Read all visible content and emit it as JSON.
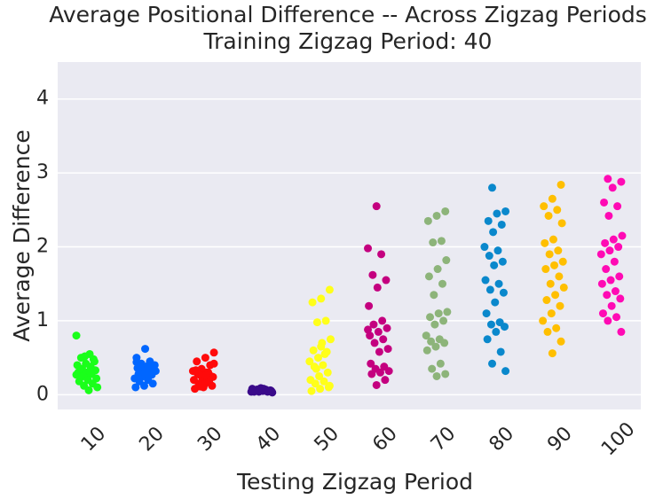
{
  "chart_data": {
    "type": "strip",
    "title": "Average Positional Difference -- Across Zigzag Periods",
    "subtitle": "Training Zigzag Period: 40",
    "xlabel": "Testing Zigzag Period",
    "ylabel": "Average Difference",
    "categories": [
      "10",
      "20",
      "30",
      "40",
      "50",
      "60",
      "70",
      "80",
      "90",
      "100"
    ],
    "colors": [
      "#1aff1a",
      "#0066ff",
      "#ff0a0a",
      "#3a0a8a",
      "#ffff1a",
      "#c4007f",
      "#8db47a",
      "#0a88cc",
      "#ffbf00",
      "#ff0ab4"
    ],
    "values": [
      [
        0.8,
        0.55,
        0.5,
        0.45,
        0.42,
        0.4,
        0.38,
        0.35,
        0.33,
        0.3,
        0.3,
        0.28,
        0.25,
        0.22,
        0.2,
        0.18,
        0.15,
        0.12,
        0.1,
        0.06,
        0.35,
        0.48,
        0.52,
        0.27,
        0.32
      ],
      [
        0.62,
        0.5,
        0.45,
        0.42,
        0.4,
        0.38,
        0.36,
        0.35,
        0.33,
        0.32,
        0.3,
        0.28,
        0.27,
        0.25,
        0.22,
        0.2,
        0.18,
        0.15,
        0.12,
        0.1,
        0.4,
        0.37,
        0.34,
        0.29,
        0.44
      ],
      [
        0.57,
        0.5,
        0.45,
        0.4,
        0.35,
        0.32,
        0.3,
        0.28,
        0.25,
        0.22,
        0.2,
        0.18,
        0.15,
        0.12,
        0.1,
        0.08,
        0.3,
        0.27,
        0.24,
        0.14,
        0.33,
        0.19,
        0.11,
        0.42,
        0.26
      ],
      [
        0.09,
        0.08,
        0.07,
        0.07,
        0.06,
        0.06,
        0.06,
        0.05,
        0.05,
        0.05,
        0.05,
        0.04,
        0.04,
        0.04,
        0.03,
        0.08,
        0.06,
        0.05,
        0.07,
        0.04
      ],
      [
        1.42,
        1.3,
        1.25,
        1.0,
        0.98,
        0.75,
        0.7,
        0.6,
        0.58,
        0.5,
        0.45,
        0.4,
        0.38,
        0.3,
        0.25,
        0.2,
        0.18,
        0.15,
        0.1,
        0.08,
        0.05,
        0.55,
        0.35,
        0.12,
        0.65
      ],
      [
        2.55,
        1.98,
        1.9,
        1.62,
        1.55,
        1.45,
        1.2,
        1.0,
        0.95,
        0.9,
        0.85,
        0.8,
        0.75,
        0.7,
        0.62,
        0.58,
        0.42,
        0.38,
        0.35,
        0.32,
        0.3,
        0.28,
        0.2,
        0.13,
        0.88
      ],
      [
        2.48,
        2.42,
        2.35,
        2.08,
        2.06,
        1.82,
        1.7,
        1.6,
        1.5,
        1.35,
        1.12,
        1.1,
        1.05,
        1.0,
        0.95,
        0.8,
        0.75,
        0.72,
        0.7,
        0.65,
        0.6,
        0.42,
        0.35,
        0.28,
        0.25
      ],
      [
        2.8,
        2.48,
        2.45,
        2.35,
        2.3,
        2.2,
        2.0,
        1.95,
        1.88,
        1.8,
        1.75,
        1.55,
        1.5,
        1.42,
        1.38,
        1.25,
        1.1,
        0.98,
        0.95,
        0.92,
        0.85,
        0.75,
        0.58,
        0.42,
        0.32
      ],
      [
        2.84,
        2.65,
        2.55,
        2.5,
        2.42,
        2.32,
        2.1,
        2.05,
        1.95,
        1.9,
        1.8,
        1.75,
        1.7,
        1.6,
        1.5,
        1.45,
        1.35,
        1.28,
        1.2,
        1.1,
        1.0,
        0.9,
        0.85,
        0.72,
        0.56
      ],
      [
        2.92,
        2.88,
        2.8,
        2.6,
        2.55,
        2.42,
        2.15,
        2.1,
        2.05,
        2.0,
        1.95,
        1.9,
        1.8,
        1.7,
        1.6,
        1.55,
        1.5,
        1.4,
        1.35,
        1.3,
        1.2,
        1.1,
        1.05,
        1.0,
        0.85
      ]
    ],
    "ylim": [
      -0.2,
      4.5
    ],
    "yticks": [
      0,
      1,
      2,
      3,
      4
    ],
    "grid": true
  }
}
